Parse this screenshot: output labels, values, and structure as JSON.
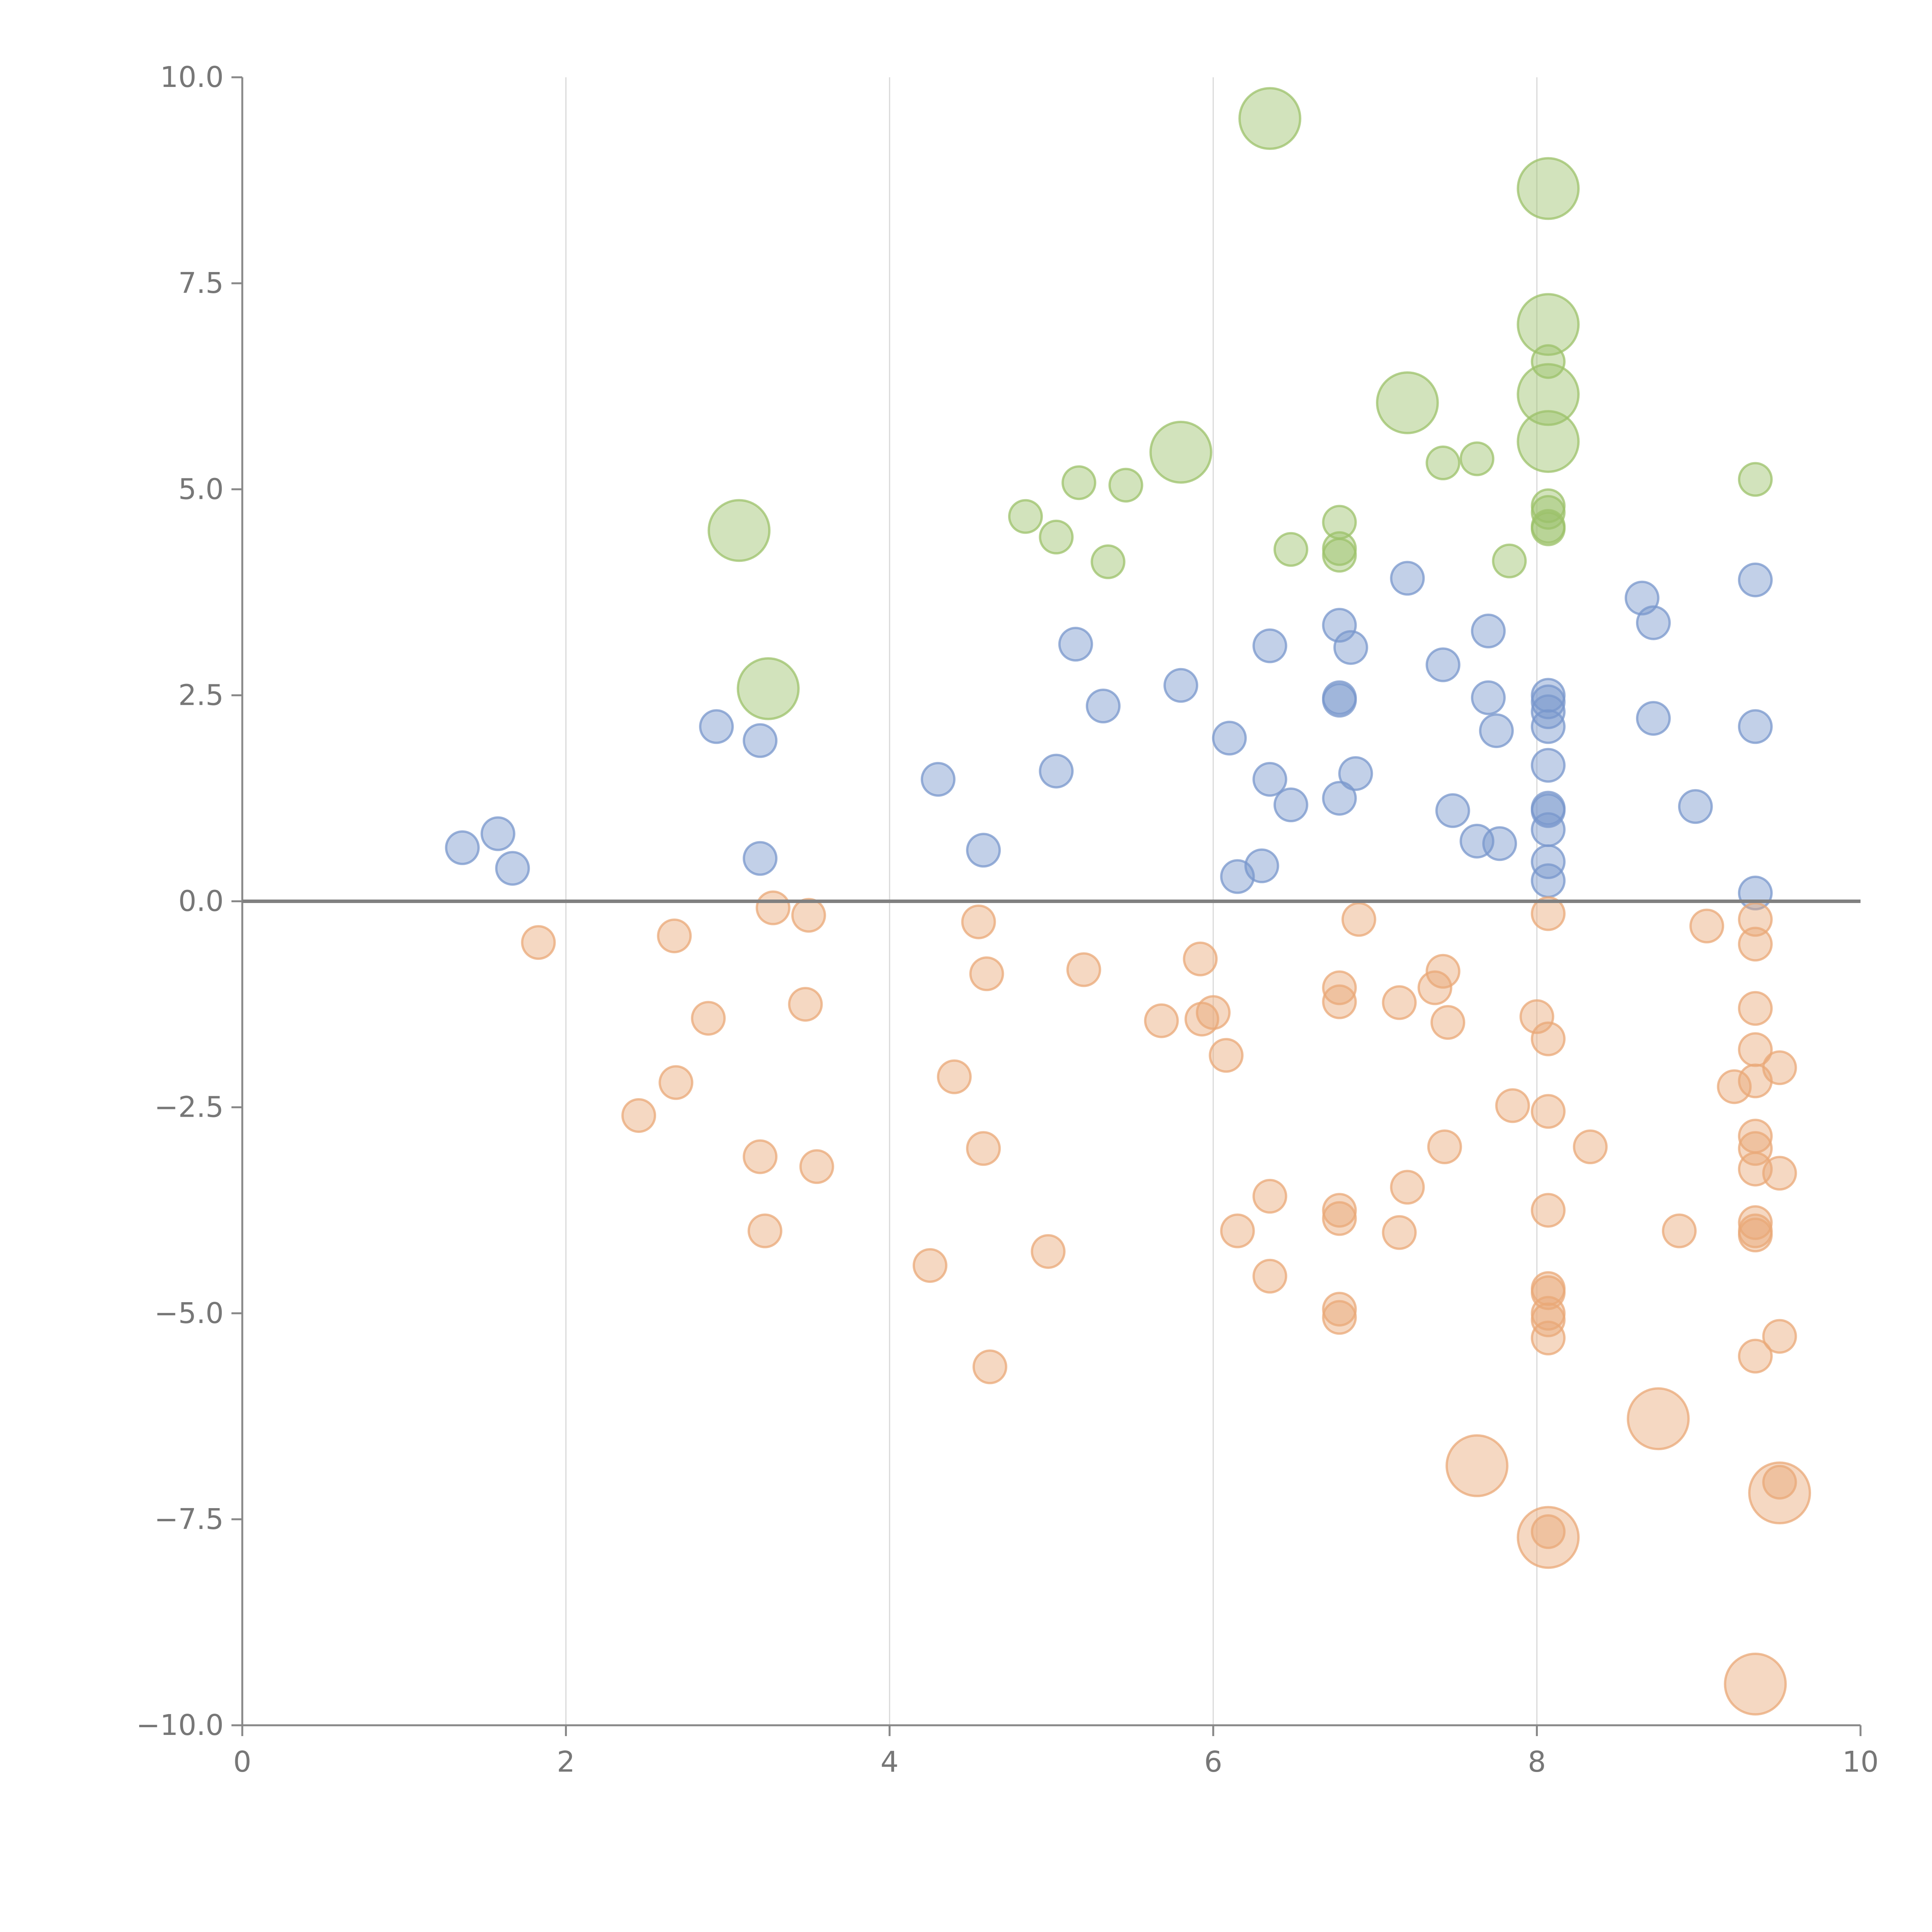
{
  "chart_data": {
    "type": "scatter",
    "title": "",
    "xlabel": "",
    "ylabel": "",
    "xlim": [
      0,
      10
    ],
    "ylim": [
      -10,
      10
    ],
    "x_ticks": [
      0,
      2,
      4,
      6,
      8,
      10
    ],
    "y_ticks": [
      -10.0,
      -7.5,
      -5.0,
      -2.5,
      0.0,
      2.5,
      5.0,
      7.5,
      10.0
    ],
    "x_tick_labels": [
      "0",
      "2",
      "4",
      "6",
      "8",
      "10"
    ],
    "y_tick_labels": [
      "−10.0",
      "−7.5",
      "−5.0",
      "−2.5",
      "0.0",
      "2.5",
      "5.0",
      "7.5",
      "10.0"
    ],
    "x_gridlines": [
      2,
      4,
      6,
      8
    ],
    "zero_line": 0,
    "series": [
      {
        "name": "green",
        "color": "#9cc26a",
        "points": [
          [
            6.35,
            9.5,
            1.4
          ],
          [
            8.07,
            8.65,
            1.4
          ],
          [
            8.07,
            7.0,
            1.4
          ],
          [
            8.07,
            6.55,
            0.75
          ],
          [
            7.2,
            6.05,
            1.4
          ],
          [
            8.07,
            6.15,
            1.4
          ],
          [
            5.8,
            5.45,
            1.4
          ],
          [
            8.07,
            5.58,
            1.4
          ],
          [
            7.42,
            5.32,
            0.75
          ],
          [
            7.63,
            5.37,
            0.75
          ],
          [
            9.35,
            5.12,
            0.75
          ],
          [
            5.17,
            5.08,
            0.75
          ],
          [
            5.46,
            5.05,
            0.75
          ],
          [
            8.07,
            4.8,
            0.75
          ],
          [
            8.07,
            4.72,
            0.75
          ],
          [
            4.84,
            4.67,
            0.75
          ],
          [
            6.78,
            4.6,
            0.75
          ],
          [
            8.07,
            4.52,
            0.75
          ],
          [
            8.07,
            4.55,
            0.75
          ],
          [
            3.07,
            4.5,
            1.4
          ],
          [
            5.03,
            4.42,
            0.75
          ],
          [
            6.78,
            4.28,
            0.75
          ],
          [
            6.48,
            4.27,
            0.75
          ],
          [
            6.78,
            4.2,
            0.75
          ],
          [
            5.35,
            4.12,
            0.75
          ],
          [
            7.83,
            4.13,
            0.75
          ],
          [
            3.25,
            2.58,
            1.4
          ]
        ]
      },
      {
        "name": "blue",
        "color": "#7897cc",
        "points": [
          [
            7.2,
            3.92,
            0.75
          ],
          [
            9.35,
            3.9,
            0.75
          ],
          [
            8.65,
            3.68,
            0.75
          ],
          [
            8.72,
            3.38,
            0.75
          ],
          [
            6.78,
            3.35,
            0.75
          ],
          [
            7.7,
            3.28,
            0.75
          ],
          [
            5.15,
            3.12,
            0.75
          ],
          [
            6.35,
            3.1,
            0.75
          ],
          [
            6.85,
            3.08,
            0.75
          ],
          [
            7.42,
            2.87,
            0.75
          ],
          [
            5.8,
            2.62,
            0.75
          ],
          [
            8.07,
            2.5,
            0.75
          ],
          [
            7.7,
            2.47,
            0.75
          ],
          [
            6.78,
            2.47,
            0.75
          ],
          [
            6.78,
            2.44,
            0.75
          ],
          [
            8.07,
            2.42,
            0.75
          ],
          [
            5.32,
            2.37,
            0.75
          ],
          [
            8.07,
            2.3,
            0.75
          ],
          [
            8.72,
            2.22,
            0.75
          ],
          [
            2.93,
            2.12,
            0.75
          ],
          [
            9.35,
            2.12,
            0.75
          ],
          [
            8.07,
            2.12,
            0.75
          ],
          [
            7.75,
            2.07,
            0.75
          ],
          [
            6.1,
            1.98,
            0.75
          ],
          [
            3.2,
            1.95,
            0.75
          ],
          [
            8.07,
            1.65,
            0.75
          ],
          [
            5.03,
            1.58,
            0.75
          ],
          [
            6.88,
            1.55,
            0.75
          ],
          [
            4.3,
            1.48,
            0.75
          ],
          [
            6.35,
            1.48,
            0.75
          ],
          [
            6.78,
            1.25,
            0.75
          ],
          [
            6.48,
            1.17,
            0.75
          ],
          [
            8.98,
            1.15,
            0.75
          ],
          [
            8.07,
            1.13,
            0.75
          ],
          [
            8.07,
            1.1,
            0.75
          ],
          [
            7.48,
            1.1,
            0.75
          ],
          [
            8.07,
            0.87,
            0.75
          ],
          [
            1.58,
            0.82,
            0.75
          ],
          [
            7.63,
            0.73,
            0.75
          ],
          [
            7.77,
            0.7,
            0.75
          ],
          [
            1.36,
            0.65,
            0.75
          ],
          [
            4.58,
            0.62,
            0.75
          ],
          [
            3.2,
            0.52,
            0.75
          ],
          [
            8.07,
            0.48,
            0.75
          ],
          [
            6.3,
            0.43,
            0.75
          ],
          [
            1.67,
            0.4,
            0.75
          ],
          [
            6.15,
            0.3,
            0.75
          ],
          [
            8.07,
            0.25,
            0.75
          ],
          [
            9.35,
            0.1,
            0.75
          ]
        ]
      },
      {
        "name": "orange",
        "color": "#e9a877",
        "points": [
          [
            3.28,
            -0.08,
            0.75
          ],
          [
            3.5,
            -0.17,
            0.75
          ],
          [
            8.07,
            -0.15,
            0.75
          ],
          [
            6.9,
            -0.22,
            0.75
          ],
          [
            9.35,
            -0.22,
            0.75
          ],
          [
            4.55,
            -0.25,
            0.75
          ],
          [
            9.05,
            -0.3,
            0.75
          ],
          [
            2.67,
            -0.42,
            0.75
          ],
          [
            1.83,
            -0.5,
            0.75
          ],
          [
            9.35,
            -0.52,
            0.75
          ],
          [
            5.92,
            -0.7,
            0.75
          ],
          [
            5.2,
            -0.83,
            0.75
          ],
          [
            7.42,
            -0.85,
            0.75
          ],
          [
            4.6,
            -0.88,
            0.75
          ],
          [
            6.78,
            -1.05,
            0.75
          ],
          [
            7.37,
            -1.05,
            0.75
          ],
          [
            6.78,
            -1.22,
            0.75
          ],
          [
            3.48,
            -1.25,
            0.75
          ],
          [
            7.15,
            -1.23,
            0.75
          ],
          [
            9.35,
            -1.3,
            0.75
          ],
          [
            6.0,
            -1.35,
            0.75
          ],
          [
            8.0,
            -1.4,
            0.75
          ],
          [
            2.88,
            -1.42,
            0.75
          ],
          [
            5.93,
            -1.43,
            0.75
          ],
          [
            5.68,
            -1.45,
            0.75
          ],
          [
            7.45,
            -1.47,
            0.75
          ],
          [
            8.07,
            -1.67,
            0.75
          ],
          [
            9.35,
            -1.8,
            0.75
          ],
          [
            6.08,
            -1.87,
            0.75
          ],
          [
            9.5,
            -2.02,
            0.75
          ],
          [
            4.4,
            -2.13,
            0.75
          ],
          [
            9.35,
            -2.18,
            0.75
          ],
          [
            2.68,
            -2.2,
            0.75
          ],
          [
            9.22,
            -2.25,
            0.75
          ],
          [
            7.85,
            -2.48,
            0.75
          ],
          [
            8.07,
            -2.55,
            0.75
          ],
          [
            2.45,
            -2.6,
            0.75
          ],
          [
            9.35,
            -2.85,
            0.75
          ],
          [
            7.43,
            -2.98,
            0.75
          ],
          [
            8.33,
            -2.98,
            0.75
          ],
          [
            4.58,
            -3.0,
            0.75
          ],
          [
            9.35,
            -3.0,
            0.75
          ],
          [
            3.2,
            -3.1,
            0.75
          ],
          [
            3.55,
            -3.22,
            0.75
          ],
          [
            9.35,
            -3.25,
            0.75
          ],
          [
            9.5,
            -3.3,
            0.75
          ],
          [
            7.2,
            -3.47,
            0.75
          ],
          [
            6.35,
            -3.58,
            0.75
          ],
          [
            8.07,
            -3.75,
            0.75
          ],
          [
            6.78,
            -3.75,
            0.75
          ],
          [
            6.78,
            -3.85,
            0.75
          ],
          [
            9.35,
            -3.9,
            0.75
          ],
          [
            9.35,
            -4.0,
            0.75
          ],
          [
            8.88,
            -4.0,
            0.75
          ],
          [
            6.15,
            -4.0,
            0.75
          ],
          [
            3.23,
            -4.0,
            0.75
          ],
          [
            7.15,
            -4.02,
            0.75
          ],
          [
            9.35,
            -4.05,
            0.75
          ],
          [
            4.98,
            -4.25,
            0.75
          ],
          [
            4.25,
            -4.42,
            0.75
          ],
          [
            6.35,
            -4.55,
            0.75
          ],
          [
            8.07,
            -4.7,
            0.75
          ],
          [
            8.07,
            -4.75,
            0.75
          ],
          [
            6.78,
            -4.95,
            0.75
          ],
          [
            8.07,
            -5.0,
            0.75
          ],
          [
            8.07,
            -5.08,
            0.75
          ],
          [
            6.78,
            -5.05,
            0.75
          ],
          [
            9.5,
            -5.28,
            0.75
          ],
          [
            8.07,
            -5.3,
            0.75
          ],
          [
            9.35,
            -5.52,
            0.75
          ],
          [
            4.62,
            -5.65,
            0.75
          ],
          [
            8.75,
            -6.28,
            1.4
          ],
          [
            7.63,
            -6.85,
            1.4
          ],
          [
            9.5,
            -7.05,
            0.75
          ],
          [
            9.5,
            -7.18,
            1.4
          ],
          [
            8.07,
            -7.65,
            0.75
          ],
          [
            8.07,
            -7.72,
            1.4
          ],
          [
            9.35,
            -9.5,
            1.4
          ]
        ]
      }
    ]
  }
}
